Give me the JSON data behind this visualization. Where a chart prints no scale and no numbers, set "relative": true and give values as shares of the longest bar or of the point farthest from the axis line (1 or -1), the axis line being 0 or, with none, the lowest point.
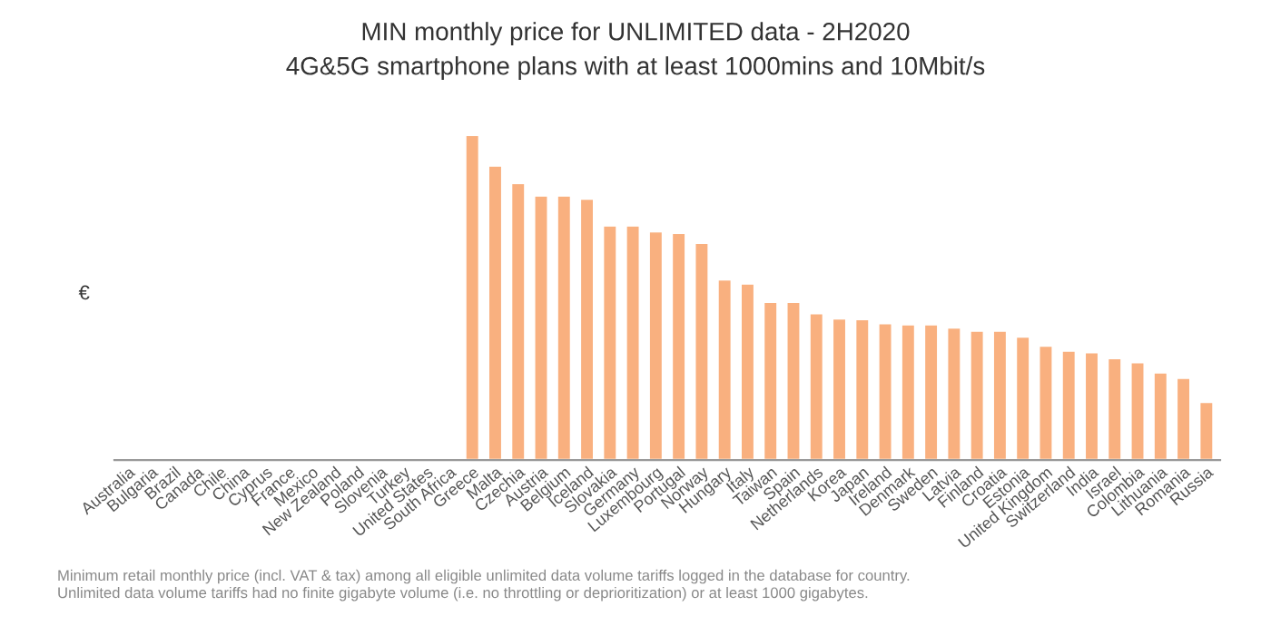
{
  "chart_data": {
    "type": "bar",
    "title": "MIN monthly price for UNLIMITED data - 2H2020",
    "subtitle": "4G&5G smartphone plans with at least 1000mins and 10Mbit/s",
    "ylabel": "€",
    "categories": [
      "Australia",
      "Bulgaria",
      "Brazil",
      "Canada",
      "Chile",
      "China",
      "Cyprus",
      "France",
      "Mexico",
      "New Zealand",
      "Poland",
      "Slovenia",
      "Turkey",
      "United States",
      "South Africa",
      "Greece",
      "Malta",
      "Czechia",
      "Austria",
      "Belgium",
      "Iceland",
      "Slovakia",
      "Germany",
      "Luxembourg",
      "Portugal",
      "Norway",
      "Hungary",
      "Italy",
      "Taiwan",
      "Spain",
      "Netherlands",
      "Korea",
      "Japan",
      "Ireland",
      "Denmark",
      "Sweden",
      "Latvia",
      "Finland",
      "Croatia",
      "Estonia",
      "United Kingdom",
      "Switzerland",
      "India",
      "Israel",
      "Colombia",
      "Lithuania",
      "Romania",
      "Russia"
    ],
    "values": [
      null,
      null,
      null,
      null,
      null,
      null,
      null,
      null,
      null,
      null,
      null,
      null,
      null,
      null,
      null,
      1,
      0.906,
      0.852,
      0.814,
      0.814,
      0.804,
      0.722,
      0.722,
      0.704,
      0.699,
      0.668,
      0.556,
      0.543,
      0.487,
      0.487,
      0.452,
      0.436,
      0.434,
      0.421,
      0.418,
      0.418,
      0.408,
      0.398,
      0.398,
      0.38,
      0.352,
      0.337,
      0.332,
      0.314,
      0.301,
      0.27,
      0.253,
      0.179
    ],
    "color": "#f9b07f",
    "relative": true,
    "annotations": [
      "Minimum retail monthly price (incl. VAT & tax) among all eligible unlimited data volume tariffs logged in the database for country.\nUnlimited data volume tariffs had no finite gigabyte volume (i.e. no throttling or deprioritization) or at least 1000 gigabytes."
    ]
  }
}
